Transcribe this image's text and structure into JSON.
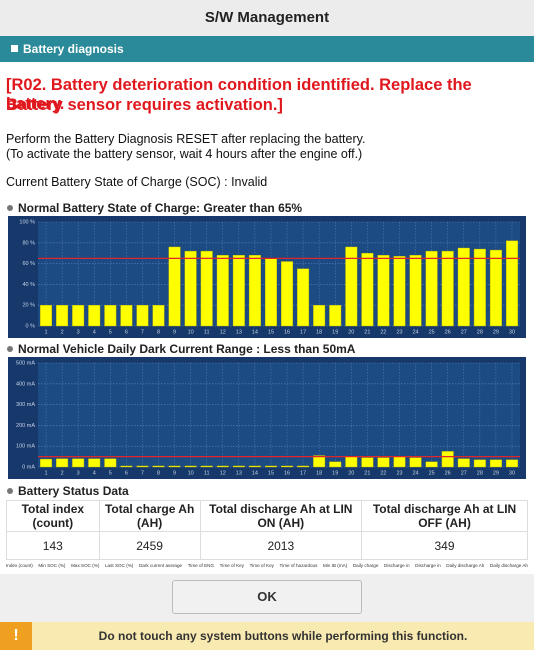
{
  "header": {
    "title": "S/W Management"
  },
  "section": {
    "title": "Battery diagnosis"
  },
  "alert": {
    "lines": [
      "[R02. Battery deterioration condition identified. Replace the battery.",
      "Battery sensor requires activation.]"
    ]
  },
  "instructions": [
    "Perform the Battery Diagnosis RESET after replacing the battery.",
    "(To activate the battery sensor, wait 4 hours after the engine off.)"
  ],
  "soc_status": "Current Battery State of Charge (SOC) : Invalid",
  "chart_data": [
    {
      "type": "bar",
      "title": "Normal Battery State of Charge: Greater than 65%",
      "categories": [
        "1",
        "2",
        "3",
        "4",
        "5",
        "6",
        "7",
        "8",
        "9",
        "10",
        "11",
        "12",
        "13",
        "14",
        "15",
        "16",
        "17",
        "18",
        "19",
        "20",
        "21",
        "22",
        "23",
        "24",
        "25",
        "26",
        "27",
        "28",
        "29",
        "30"
      ],
      "values": [
        20,
        20,
        20,
        20,
        20,
        20,
        20,
        20,
        76,
        72,
        72,
        68,
        68,
        68,
        65,
        62,
        55,
        20,
        20,
        76,
        70,
        68,
        67,
        68,
        72,
        72,
        75,
        74,
        73,
        82
      ],
      "color": "#ffff00",
      "threshold": 65,
      "threshold_color": "#e0252b",
      "ylim": [
        0,
        100
      ],
      "yticks": [
        {
          "value": 0,
          "label": "0 %"
        },
        {
          "value": 20,
          "label": "20 %"
        },
        {
          "value": 40,
          "label": "40 %"
        },
        {
          "value": 60,
          "label": "60 %"
        },
        {
          "value": 80,
          "label": "80 %"
        },
        {
          "value": 100,
          "label": "100 %"
        }
      ],
      "grid": true
    },
    {
      "type": "bar",
      "title": "Normal Vehicle Daily Dark Current Range : Less than 50mA",
      "categories": [
        "1",
        "2",
        "3",
        "4",
        "5",
        "6",
        "7",
        "8",
        "9",
        "10",
        "11",
        "12",
        "13",
        "14",
        "15",
        "16",
        "17",
        "18",
        "19",
        "20",
        "21",
        "22",
        "23",
        "24",
        "25",
        "26",
        "27",
        "28",
        "29",
        "30"
      ],
      "values": [
        38,
        40,
        40,
        40,
        40,
        5,
        5,
        5,
        5,
        5,
        5,
        5,
        5,
        5,
        5,
        5,
        5,
        55,
        25,
        50,
        45,
        45,
        50,
        45,
        25,
        75,
        40,
        35,
        35,
        35
      ],
      "color": "#ffff00",
      "threshold": 50,
      "threshold_color": "#e0252b",
      "ylim": [
        0,
        500
      ],
      "yticks": [
        {
          "value": 0,
          "label": "0 mA"
        },
        {
          "value": 100,
          "label": "100 mA"
        },
        {
          "value": 200,
          "label": "200 mA"
        },
        {
          "value": 300,
          "label": "300 mA"
        },
        {
          "value": 400,
          "label": "400 mA"
        },
        {
          "value": 500,
          "label": "500 mA"
        }
      ],
      "grid": true
    }
  ],
  "table": {
    "title": "Battery Status Data",
    "header": [
      "Total index (count)",
      "Total charge Ah (AH)",
      "Total discharge Ah at LIN ON (AH)",
      "Total discharge Ah at LIN OFF (AH)"
    ],
    "rows": [
      [
        "143",
        "2459",
        "2013",
        "349"
      ]
    ],
    "subheader": [
      "Index (count)",
      "Min SOC (%)",
      "Max SOC (%)",
      "Last SOC (%)",
      "Dark current average",
      "Time of ENG",
      "Time of Key",
      "Time of Key",
      "Time of hazardous",
      "Min IB (mA)",
      "Daily charge",
      "Discharge in",
      "Discharge in",
      "Daily discharge Ah",
      "Daily discharge Ah"
    ]
  },
  "button": {
    "label": "OK"
  },
  "warning": {
    "icon": "!",
    "text": "Do not touch any system buttons while performing this function."
  }
}
